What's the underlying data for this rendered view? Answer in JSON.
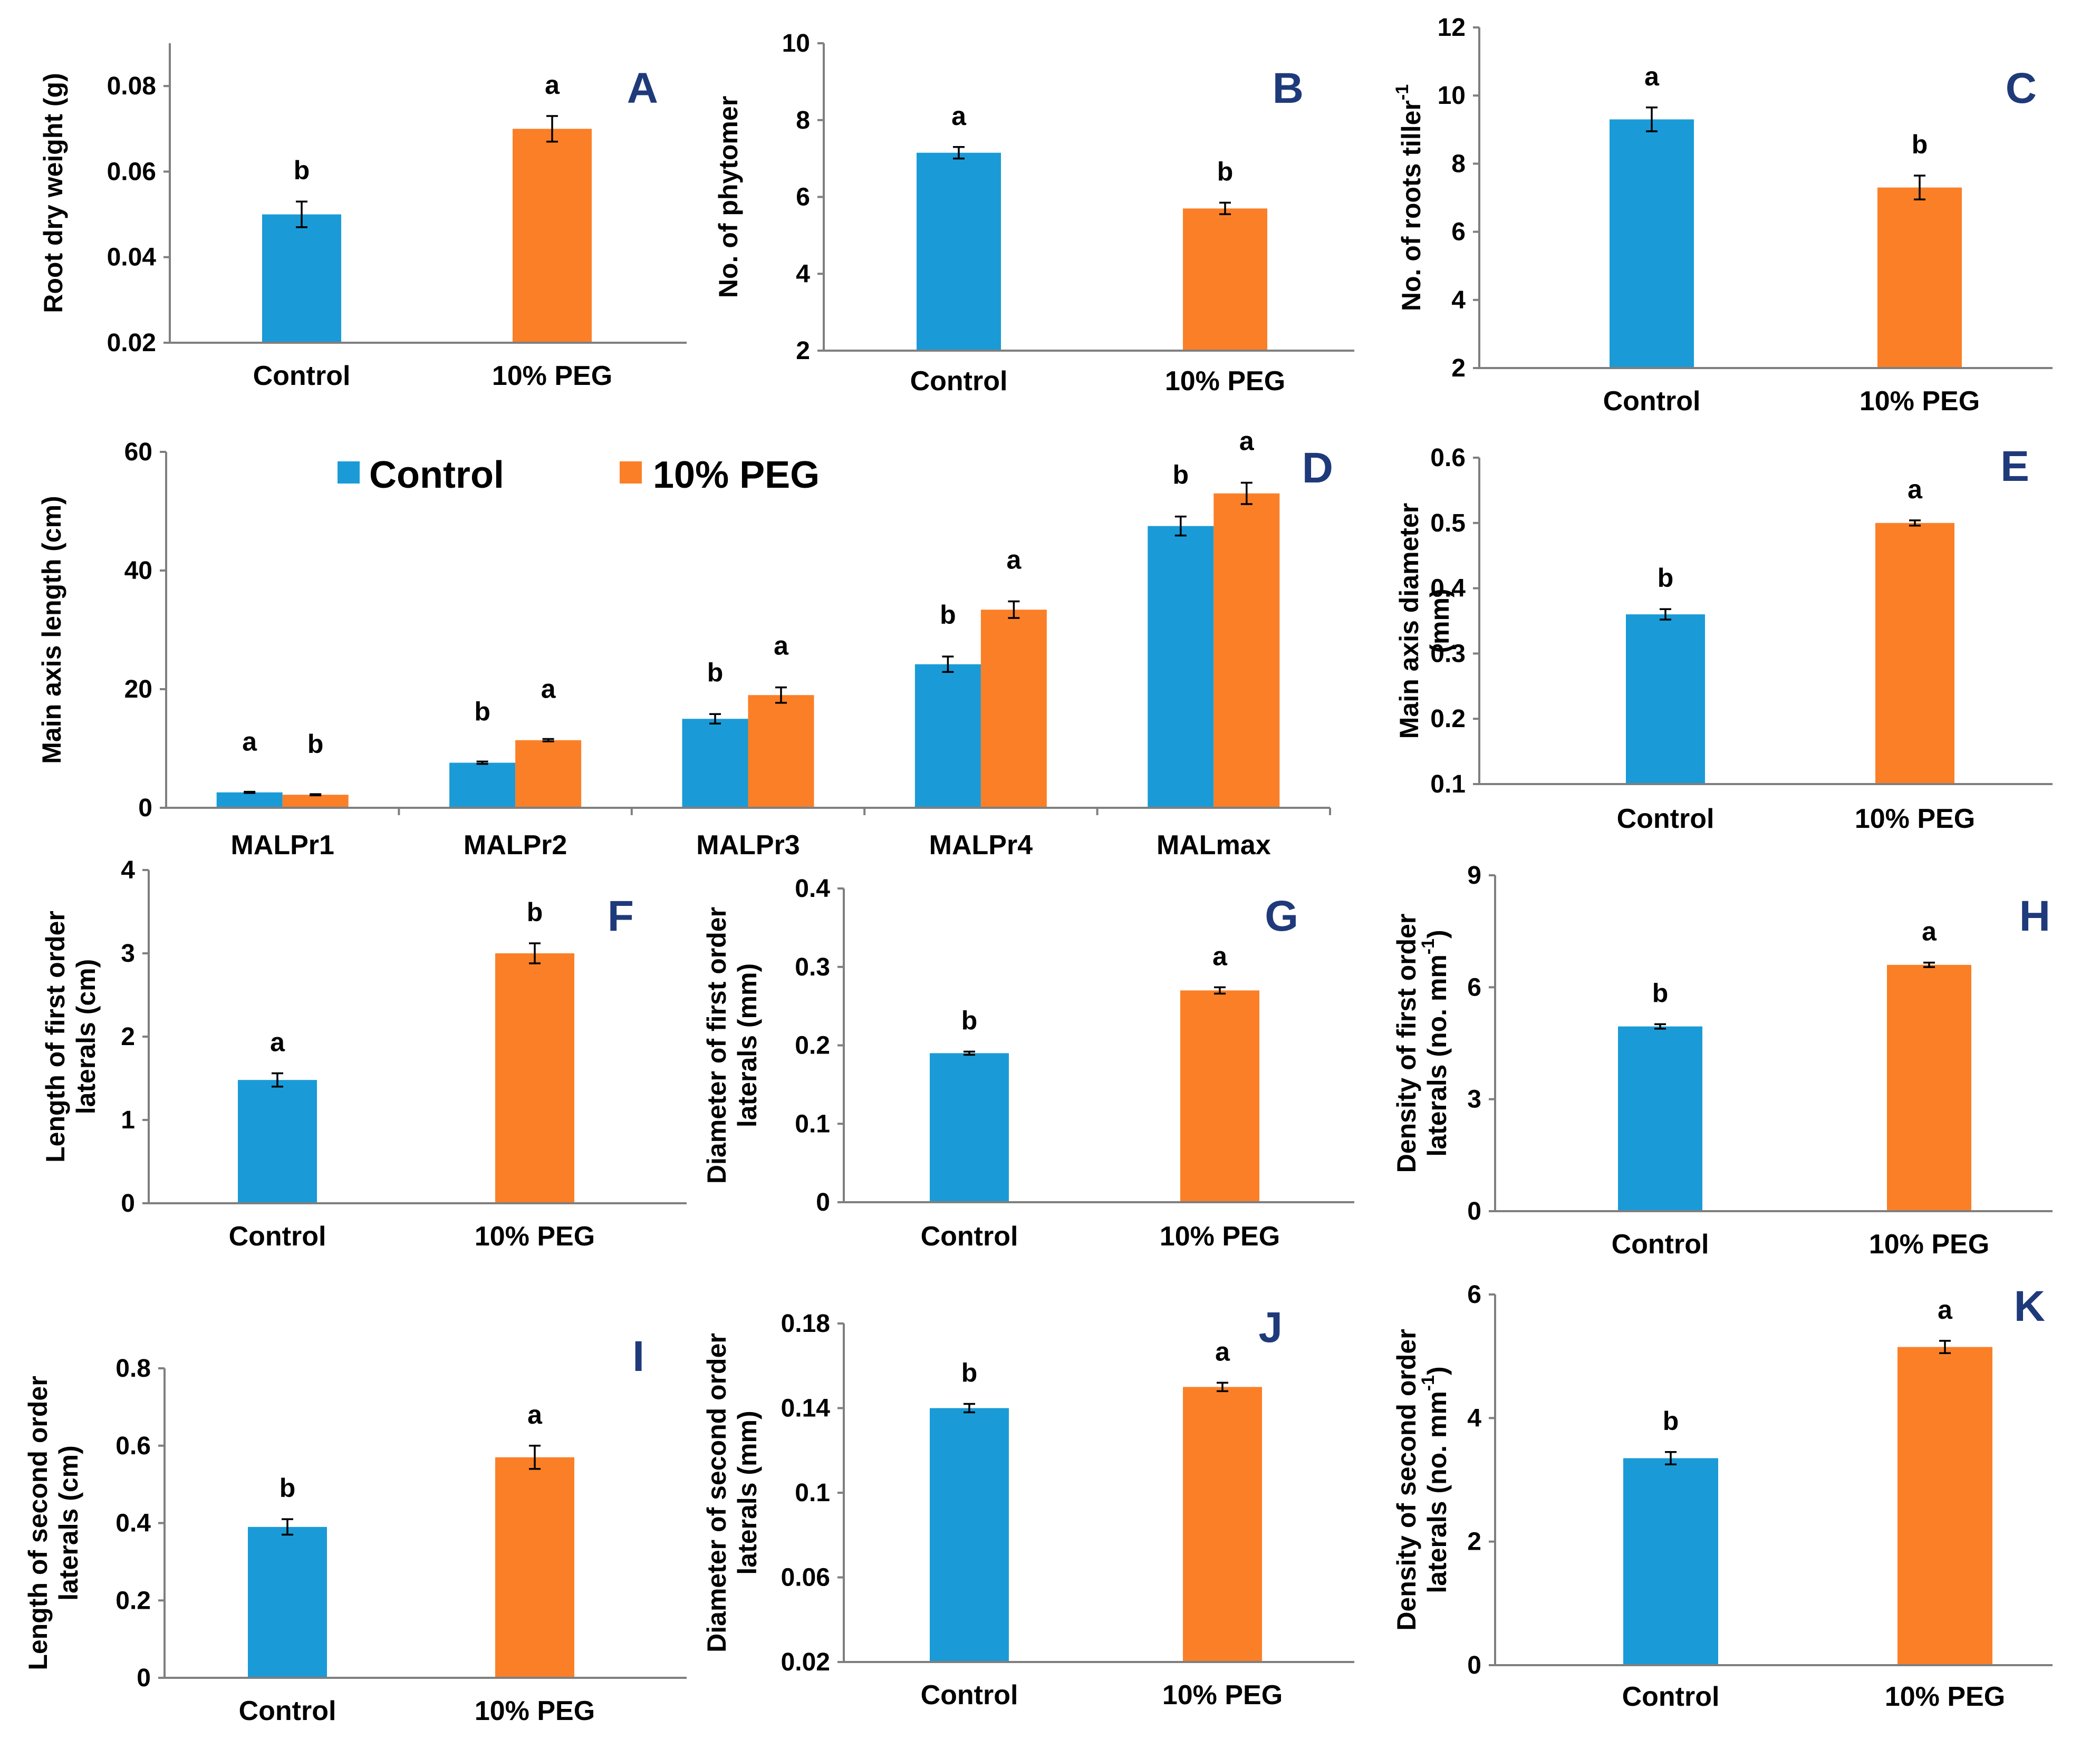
{
  "colors": {
    "control": "#1a9bd7",
    "peg": "#fb7f27",
    "panel_label": "#1f3a7a"
  },
  "legend": [
    "Control",
    "10% PEG"
  ],
  "chart_data": [
    {
      "id": "A",
      "type": "bar",
      "panel_label": "A",
      "ylabel": "Root dry weight (g)",
      "ymin": 0.02,
      "ymax": 0.09,
      "ticks": [
        "0.02",
        "0.04",
        "0.06",
        "0.08"
      ],
      "tickvals": [
        0.02,
        0.04,
        0.06,
        0.08
      ],
      "categories": [
        "Control",
        "10% PEG"
      ],
      "values": [
        0.05,
        0.07
      ],
      "errors": [
        0.003,
        0.003
      ],
      "sig": [
        "b",
        "a"
      ]
    },
    {
      "id": "B",
      "type": "bar",
      "panel_label": "B",
      "ylabel": "No. of phytomer",
      "ymin": 2,
      "ymax": 10,
      "ticks": [
        "2",
        "4",
        "6",
        "8",
        "10"
      ],
      "tickvals": [
        2,
        4,
        6,
        8,
        10
      ],
      "categories": [
        "Control",
        "10% PEG"
      ],
      "values": [
        7.15,
        5.7
      ],
      "errors": [
        0.15,
        0.15
      ],
      "sig": [
        "a",
        "b"
      ]
    },
    {
      "id": "C",
      "type": "bar",
      "panel_label": "C",
      "ylabel": "No. of roots tiller",
      "ylabel_sup": "-1",
      "ymin": 2,
      "ymax": 12,
      "ticks": [
        "2",
        "4",
        "6",
        "8",
        "10",
        "12"
      ],
      "tickvals": [
        2,
        4,
        6,
        8,
        10,
        12
      ],
      "categories": [
        "Control",
        "10% PEG"
      ],
      "values": [
        9.3,
        7.3
      ],
      "errors": [
        0.35,
        0.35
      ],
      "sig": [
        "a",
        "b"
      ]
    },
    {
      "id": "D",
      "type": "bar",
      "panel_label": "D",
      "ylabel": "Main axis length (cm)",
      "ymin": 0,
      "ymax": 60,
      "ticks": [
        "0",
        "20",
        "40",
        "60"
      ],
      "tickvals": [
        0,
        20,
        40,
        60
      ],
      "categories": [
        "MALPr1",
        "MALPr2",
        "MALPr3",
        "MALPr4",
        "MALmax"
      ],
      "series": [
        {
          "name": "Control",
          "values": [
            2.6,
            7.6,
            15.0,
            24.2,
            47.5
          ],
          "errors": [
            0.1,
            0.2,
            0.8,
            1.3,
            1.6
          ],
          "sig": [
            "a",
            "b",
            "b",
            "b",
            "b"
          ]
        },
        {
          "name": "10% PEG",
          "values": [
            2.2,
            11.4,
            19.0,
            33.4,
            53.0
          ],
          "errors": [
            0.1,
            0.2,
            1.3,
            1.4,
            1.8
          ],
          "sig": [
            "b",
            "a",
            "a",
            "a",
            "a"
          ]
        }
      ]
    },
    {
      "id": "E",
      "type": "bar",
      "panel_label": "E",
      "ylabel": "Main axis diameter (mm)",
      "ylabel_lines": [
        "Main axis diameter",
        "(mm)"
      ],
      "ymin": 0.1,
      "ymax": 0.6,
      "ticks": [
        "0.1",
        "0.2",
        "0.3",
        "0.4",
        "0.5",
        "0.6"
      ],
      "tickvals": [
        0.1,
        0.2,
        0.3,
        0.4,
        0.5,
        0.6
      ],
      "categories": [
        "Control",
        "10% PEG"
      ],
      "values": [
        0.36,
        0.5
      ],
      "errors": [
        0.008,
        0.004
      ],
      "sig": [
        "b",
        "a"
      ]
    },
    {
      "id": "F",
      "type": "bar",
      "panel_label": "F",
      "ylabel": "Length of first order laterals (cm)",
      "ylabel_lines": [
        "Length of first order",
        "laterals (cm)"
      ],
      "ymin": 0,
      "ymax": 4,
      "ticks": [
        "0",
        "1",
        "2",
        "3",
        "4"
      ],
      "tickvals": [
        0,
        1,
        2,
        3,
        4
      ],
      "categories": [
        "Control",
        "10% PEG"
      ],
      "values": [
        1.48,
        3.0
      ],
      "errors": [
        0.08,
        0.12
      ],
      "sig": [
        "a",
        "b"
      ]
    },
    {
      "id": "G",
      "type": "bar",
      "panel_label": "G",
      "ylabel": "Diameter of first order laterals (mm)",
      "ylabel_lines": [
        "Diameter of first order",
        "laterals (mm)"
      ],
      "ymin": 0,
      "ymax": 0.4,
      "ticks": [
        "0",
        "0.1",
        "0.2",
        "0.3",
        "0.4"
      ],
      "tickvals": [
        0,
        0.1,
        0.2,
        0.3,
        0.4
      ],
      "categories": [
        "Control",
        "10% PEG"
      ],
      "values": [
        0.19,
        0.27
      ],
      "errors": [
        0.002,
        0.004
      ],
      "sig": [
        "b",
        "a"
      ]
    },
    {
      "id": "H",
      "type": "bar",
      "panel_label": "H",
      "ylabel": "Density of first order laterals (no. mm-1)",
      "ylabel_lines": [
        "Density of first order",
        "laterals (no. mm"
      ],
      "ylabel_sup": "-1",
      "ylabel_tail": ")",
      "ymin": 0,
      "ymax": 9,
      "ticks": [
        "0",
        "3",
        "6",
        "9"
      ],
      "tickvals": [
        0,
        3,
        6,
        9
      ],
      "categories": [
        "Control",
        "10% PEG"
      ],
      "values": [
        4.95,
        6.6
      ],
      "errors": [
        0.06,
        0.06
      ],
      "sig": [
        "b",
        "a"
      ]
    },
    {
      "id": "I",
      "type": "bar",
      "panel_label": "I",
      "ylabel": "Length of second order laterals (cm)",
      "ylabel_lines": [
        "Length of second order",
        "laterals (cm)"
      ],
      "ymin": 0,
      "ymax": 0.8,
      "ticks": [
        "0",
        "0.2",
        "0.4",
        "0.6",
        "0.8"
      ],
      "tickvals": [
        0,
        0.2,
        0.4,
        0.6,
        0.8
      ],
      "categories": [
        "Control",
        "10% PEG"
      ],
      "values": [
        0.39,
        0.57
      ],
      "errors": [
        0.02,
        0.03
      ],
      "sig": [
        "b",
        "a"
      ]
    },
    {
      "id": "J",
      "type": "bar",
      "panel_label": "J",
      "ylabel": "Diameter of second order laterals (mm)",
      "ylabel_lines": [
        "Diameter of second order",
        "laterals (mm)"
      ],
      "ymin": 0.02,
      "ymax": 0.18,
      "ticks": [
        "0.02",
        "0.06",
        "0.1",
        "0.14",
        "0.18"
      ],
      "tickvals": [
        0.02,
        0.06,
        0.1,
        0.14,
        0.18
      ],
      "categories": [
        "Control",
        "10% PEG"
      ],
      "values": [
        0.14,
        0.15
      ],
      "errors": [
        0.002,
        0.002
      ],
      "sig": [
        "b",
        "a"
      ]
    },
    {
      "id": "K",
      "type": "bar",
      "panel_label": "K",
      "ylabel": "Density of  second order laterals (no. mm-1)",
      "ylabel_lines": [
        "Density of  second order",
        "laterals (no. mm"
      ],
      "ylabel_sup": "-1",
      "ylabel_tail": ")",
      "ymin": 0,
      "ymax": 6,
      "ticks": [
        "0",
        "2",
        "4",
        "6"
      ],
      "tickvals": [
        0,
        2,
        4,
        6
      ],
      "categories": [
        "Control",
        "10% PEG"
      ],
      "values": [
        3.35,
        5.15
      ],
      "errors": [
        0.1,
        0.1
      ],
      "sig": [
        "b",
        "a"
      ]
    }
  ]
}
